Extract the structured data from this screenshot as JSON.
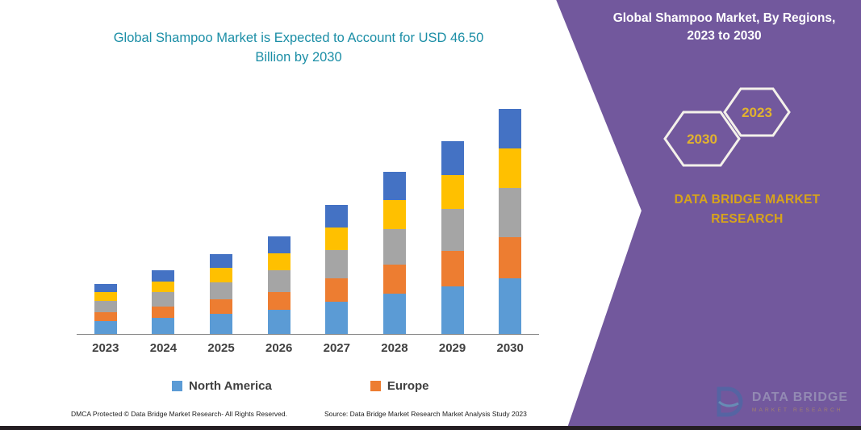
{
  "header": {
    "title_line1": "Global Shampoo Market, By Regions,",
    "title_line2": "2023 to 2030"
  },
  "panel": {
    "hexagons": [
      {
        "year": "2030"
      },
      {
        "year": "2023"
      }
    ],
    "brand_line1": "DATA BRIDGE MARKET",
    "brand_line2": "RESEARCH",
    "colors": {
      "background": "#72589D",
      "gold_text": "#D7A41B",
      "hexagon_year": "#E2B32E"
    }
  },
  "chart": {
    "title_line1": "Global Shampoo Market is Expected to Account for USD 46.50",
    "title_line2": "Billion by 2030",
    "title_color": "#1B8EA6"
  },
  "chart_data": {
    "type": "bar",
    "stacked": true,
    "title": "Global Shampoo Market is Expected to Account for USD 46.50 Billion by 2030",
    "unit": "USD Billion",
    "categories": [
      "2023",
      "2024",
      "2025",
      "2026",
      "2027",
      "2028",
      "2029",
      "2030"
    ],
    "series": [
      {
        "name": "North America",
        "color": "#5B9BD5",
        "values": [
          2.6,
          3.3,
          4.1,
          5.0,
          6.6,
          8.3,
          9.8,
          11.5
        ]
      },
      {
        "name": "Europe",
        "color": "#ED7D31",
        "values": [
          1.9,
          2.4,
          3.0,
          3.7,
          4.9,
          6.1,
          7.3,
          8.5
        ]
      },
      {
        "name": "unlabeled-gray-segment",
        "color": "#A5A5A5",
        "values": [
          2.3,
          2.9,
          3.6,
          4.4,
          5.8,
          7.3,
          8.7,
          10.1
        ]
      },
      {
        "name": "unlabeled-yellow-segment",
        "color": "#FFC000",
        "values": [
          1.8,
          2.3,
          2.9,
          3.6,
          4.7,
          5.9,
          7.0,
          8.2
        ]
      },
      {
        "name": "unlabeled-darkblue-segment",
        "color": "#4472C4",
        "values": [
          1.8,
          2.3,
          2.9,
          3.5,
          4.7,
          5.9,
          7.0,
          8.2
        ]
      }
    ],
    "totals_estimated": [
      10.4,
      13.2,
      16.5,
      20.2,
      26.7,
      33.5,
      39.8,
      46.5
    ],
    "ylim": [
      0,
      46.5
    ],
    "grid": false,
    "legend_entries": [
      "North America",
      "Europe"
    ],
    "legend_position": "bottom"
  },
  "legend": [
    {
      "label": "North America",
      "color": "#5B9BD5"
    },
    {
      "label": "Europe",
      "color": "#ED7D31"
    }
  ],
  "footer": {
    "left": "DMCA Protected © Data Bridge Market Research-  All Rights Reserved.",
    "source": "Source: Data Bridge Market Research  Market Analysis Study 2023"
  },
  "watermark": {
    "name": "DATA BRIDGE",
    "tagline": "MARKET RESEARCH"
  }
}
